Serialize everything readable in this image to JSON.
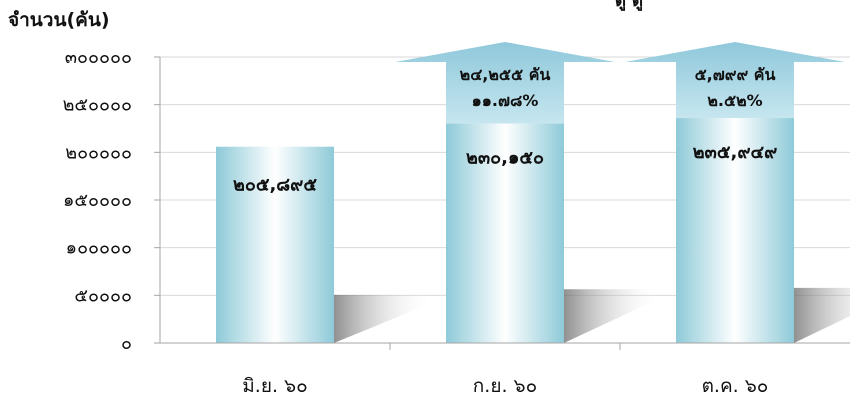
{
  "chart_data": {
    "type": "bar",
    "title_partial": "ดู ดู",
    "ylabel": "จำนวน(คัน)",
    "ylim": [
      0,
      300000
    ],
    "yticks": [
      {
        "value": 0,
        "label": "๐"
      },
      {
        "value": 50000,
        "label": "๕๐๐๐๐"
      },
      {
        "value": 100000,
        "label": "๑๐๐๐๐๐"
      },
      {
        "value": 150000,
        "label": "๑๕๐๐๐๐"
      },
      {
        "value": 200000,
        "label": "๒๐๐๐๐๐"
      },
      {
        "value": 250000,
        "label": "๒๕๐๐๐๐"
      },
      {
        "value": 300000,
        "label": "๓๐๐๐๐๐"
      }
    ],
    "categories": [
      "มิ.ย. ๖๐",
      "ก.ย. ๖๐",
      "ต.ค. ๖๐"
    ],
    "values": [
      205895,
      230150,
      235949
    ],
    "value_labels": [
      "๒๐๕,๘๙๕",
      "๒๓๐,๑๕๐",
      "๒๓๕,๙๔๙"
    ],
    "annotations": [
      null,
      {
        "change": "๒๔,๒๕๕ คัน",
        "percent": "๑๑.๗๘%"
      },
      {
        "change": "๕,๗๙๙ คัน",
        "percent": "๒.๕๒%"
      }
    ],
    "grid": true,
    "legend": "none",
    "colors": {
      "bar_edge": "#8ecad8",
      "bar_center": "#ffffff",
      "arrow": "#9ccfe0",
      "grid": "#d9d9d9",
      "axis": "#a6a6a6"
    }
  }
}
